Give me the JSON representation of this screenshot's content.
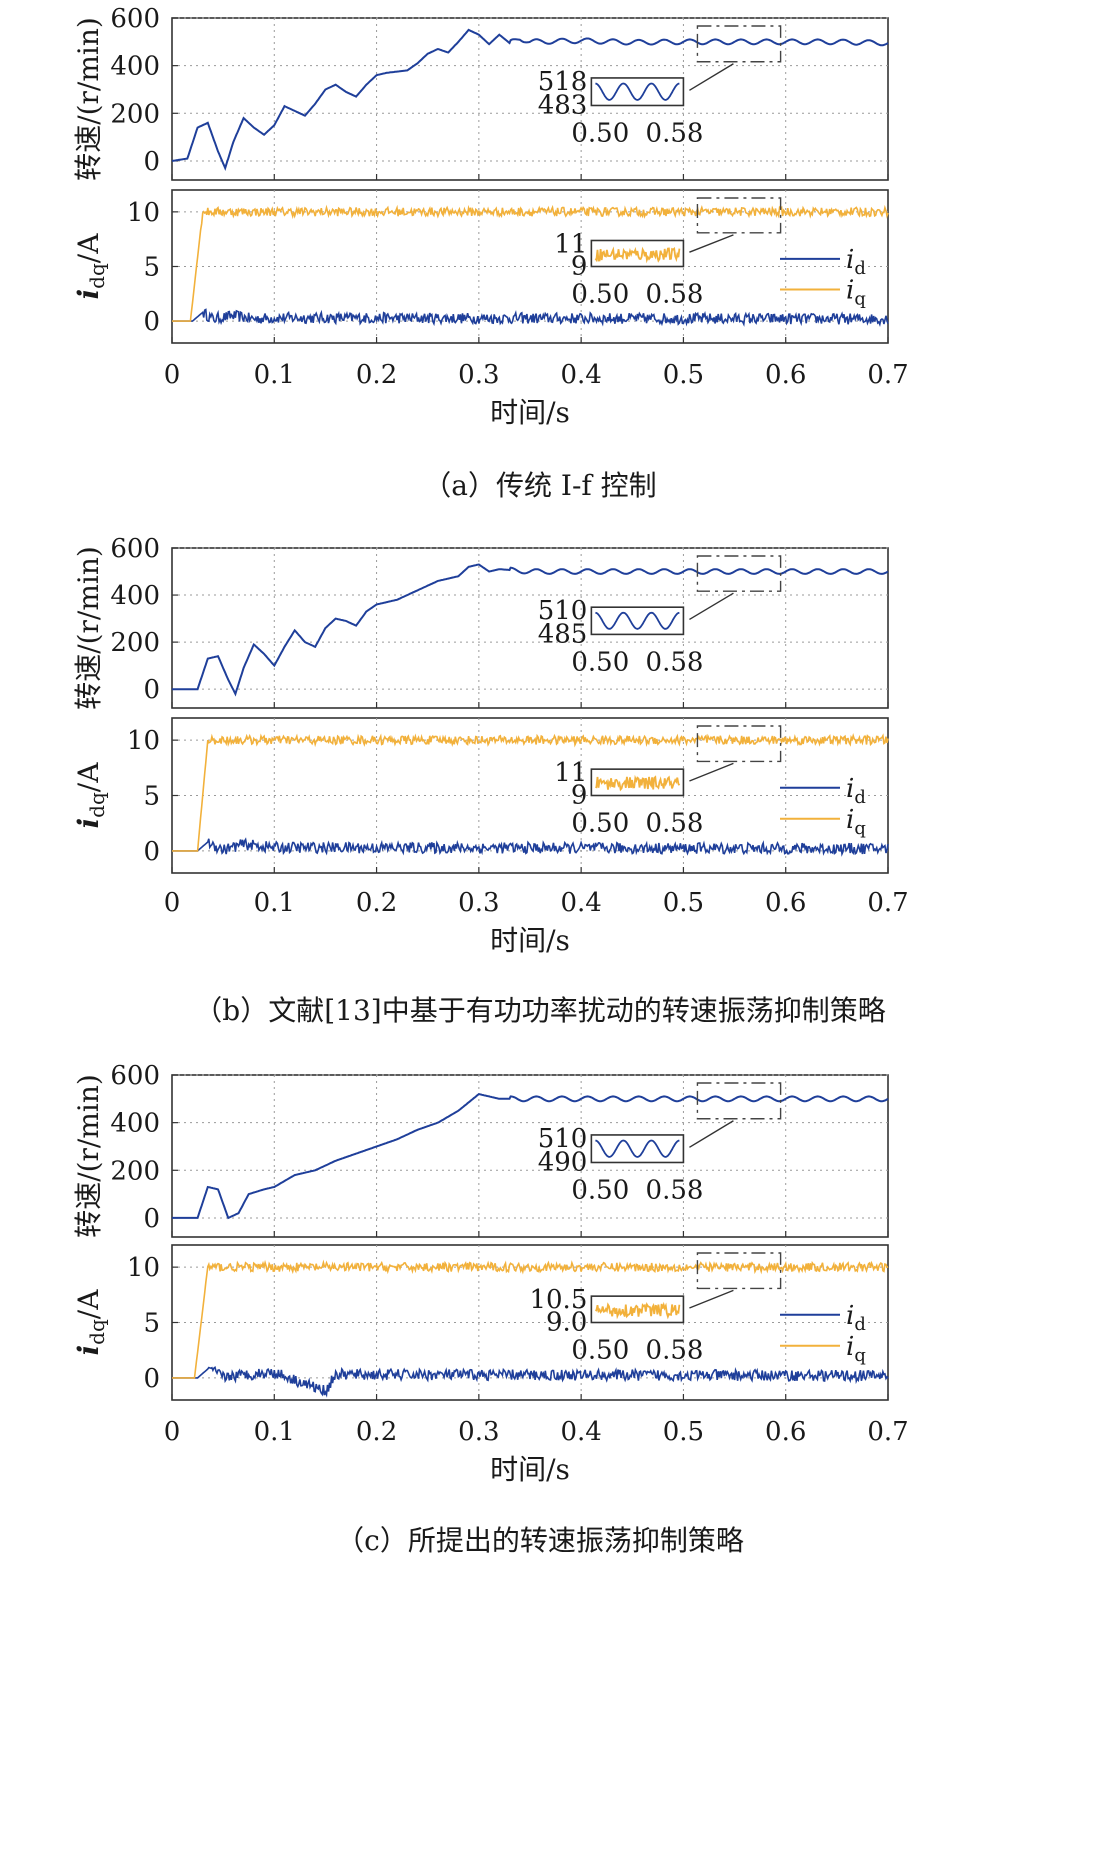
{
  "chart_data": [
    {
      "type": "line",
      "panel": "a",
      "caption": "（a）传统 I-f 控制",
      "xlabel": "时间/s",
      "xlim": [
        0,
        0.7
      ],
      "xticks": [
        "0",
        "0.1",
        "0.2",
        "0.3",
        "0.4",
        "0.5",
        "0.6",
        "0.7"
      ],
      "grid": true,
      "subplots": [
        {
          "ylabel": "转速/(r/min)",
          "ylim": [
            -80,
            600
          ],
          "yticks": [
            "0",
            "200",
            "400",
            "600"
          ],
          "series": [
            {
              "name": "",
              "color": "#1f3f9a",
              "x": [
                0,
                0.015,
                0.025,
                0.035,
                0.045,
                0.052,
                0.06,
                0.07,
                0.08,
                0.09,
                0.1,
                0.11,
                0.12,
                0.13,
                0.14,
                0.15,
                0.16,
                0.17,
                0.18,
                0.19,
                0.2,
                0.21,
                0.22,
                0.23,
                0.24,
                0.25,
                0.26,
                0.27,
                0.28,
                0.29,
                0.3,
                0.31,
                0.32,
                0.33,
                0.34,
                0.35,
                0.4,
                0.45,
                0.5,
                0.55,
                0.6,
                0.65,
                0.7
              ],
              "y": [
                0,
                10,
                140,
                160,
                40,
                -30,
                80,
                180,
                140,
                110,
                150,
                230,
                210,
                190,
                240,
                300,
                320,
                290,
                270,
                320,
                360,
                370,
                375,
                380,
                410,
                450,
                470,
                455,
                500,
                550,
                530,
                490,
                530,
                495,
                515,
                500,
                505,
                498,
                500,
                500,
                500,
                500,
                495
              ]
            }
          ],
          "inset": {
            "ymax_label": "518",
            "ymin_label": "483",
            "x_left_label": "0.50",
            "x_right_label": "0.58"
          }
        },
        {
          "ylabel": "i_dq/A",
          "ylim": [
            -2,
            12
          ],
          "yticks": [
            "0",
            "5",
            "10"
          ],
          "series": [
            {
              "name": "i_d",
              "color": "#1f3f9a",
              "noise": 0.5,
              "x": [
                0,
                0.02,
                0.03,
                0.04,
                0.06,
                0.08,
                0.1,
                0.7
              ],
              "y": [
                0,
                0,
                0.8,
                0.2,
                0.5,
                0.2,
                0.3,
                0.2
              ]
            },
            {
              "name": "i_q",
              "color": "#f2b13b",
              "noise": 0.4,
              "x": [
                0,
                0.018,
                0.03,
                0.05,
                0.7
              ],
              "y": [
                0,
                0,
                10,
                10,
                10
              ]
            }
          ],
          "inset": {
            "ymax_label": "11",
            "ymin_label": "9",
            "x_left_label": "0.50",
            "x_right_label": "0.58"
          }
        }
      ]
    },
    {
      "type": "line",
      "panel": "b",
      "caption": "（b）文献[13]中基于有功功率扰动的转速振荡抑制策略",
      "xlabel": "时间/s",
      "xlim": [
        0,
        0.7
      ],
      "xticks": [
        "0",
        "0.1",
        "0.2",
        "0.3",
        "0.4",
        "0.5",
        "0.6",
        "0.7"
      ],
      "grid": true,
      "subplots": [
        {
          "ylabel": "转速/(r/min)",
          "ylim": [
            -80,
            600
          ],
          "yticks": [
            "0",
            "200",
            "400",
            "600"
          ],
          "series": [
            {
              "name": "",
              "color": "#1f3f9a",
              "x": [
                0,
                0.025,
                0.035,
                0.045,
                0.055,
                0.062,
                0.07,
                0.08,
                0.09,
                0.1,
                0.11,
                0.12,
                0.13,
                0.14,
                0.15,
                0.16,
                0.17,
                0.18,
                0.19,
                0.2,
                0.22,
                0.24,
                0.26,
                0.28,
                0.29,
                0.3,
                0.31,
                0.32,
                0.35,
                0.4,
                0.5,
                0.6,
                0.7
              ],
              "y": [
                0,
                0,
                130,
                140,
                40,
                -20,
                90,
                190,
                150,
                100,
                180,
                250,
                200,
                180,
                260,
                300,
                290,
                270,
                330,
                360,
                380,
                420,
                460,
                480,
                520,
                530,
                500,
                510,
                500,
                500,
                500,
                500,
                500
              ]
            }
          ],
          "inset": {
            "ymax_label": "510",
            "ymin_label": "485",
            "x_left_label": "0.50",
            "x_right_label": "0.58"
          }
        },
        {
          "ylabel": "i_dq/A",
          "ylim": [
            -2,
            12
          ],
          "yticks": [
            "0",
            "5",
            "10"
          ],
          "series": [
            {
              "name": "i_d",
              "color": "#1f3f9a",
              "noise": 0.5,
              "x": [
                0,
                0.025,
                0.035,
                0.05,
                0.07,
                0.1,
                0.7
              ],
              "y": [
                0,
                0,
                0.8,
                0.1,
                0.6,
                0.3,
                0.2
              ]
            },
            {
              "name": "i_q",
              "color": "#f2b13b",
              "noise": 0.4,
              "x": [
                0,
                0.025,
                0.035,
                0.05,
                0.7
              ],
              "y": [
                0,
                0,
                10,
                10,
                10
              ]
            }
          ],
          "inset": {
            "ymax_label": "11",
            "ymin_label": "9",
            "x_left_label": "0.50",
            "x_right_label": "0.58"
          }
        }
      ]
    },
    {
      "type": "line",
      "panel": "c",
      "caption": "（c）所提出的转速振荡抑制策略",
      "xlabel": "时间/s",
      "xlim": [
        0,
        0.7
      ],
      "xticks": [
        "0",
        "0.1",
        "0.2",
        "0.3",
        "0.4",
        "0.5",
        "0.6",
        "0.7"
      ],
      "grid": true,
      "subplots": [
        {
          "ylabel": "转速/(r/min)",
          "ylim": [
            -80,
            600
          ],
          "yticks": [
            "0",
            "200",
            "400",
            "600"
          ],
          "series": [
            {
              "name": "",
              "color": "#1f3f9a",
              "x": [
                0,
                0.025,
                0.035,
                0.045,
                0.055,
                0.065,
                0.075,
                0.09,
                0.1,
                0.12,
                0.14,
                0.16,
                0.18,
                0.2,
                0.22,
                0.24,
                0.26,
                0.28,
                0.3,
                0.32,
                0.35,
                0.4,
                0.5,
                0.6,
                0.7
              ],
              "y": [
                0,
                0,
                130,
                120,
                0,
                20,
                100,
                120,
                130,
                180,
                200,
                240,
                270,
                300,
                330,
                370,
                400,
                450,
                520,
                500,
                500,
                500,
                500,
                500,
                500
              ]
            }
          ],
          "inset": {
            "ymax_label": "510",
            "ymin_label": "490",
            "x_left_label": "0.50",
            "x_right_label": "0.58"
          }
        },
        {
          "ylabel": "i_dq/A",
          "ylim": [
            -2,
            12
          ],
          "yticks": [
            "0",
            "5",
            "10"
          ],
          "series": [
            {
              "name": "i_d",
              "color": "#1f3f9a",
              "noise": 0.5,
              "x": [
                0,
                0.025,
                0.035,
                0.05,
                0.1,
                0.15,
                0.16,
                0.7
              ],
              "y": [
                0,
                0,
                0.8,
                0.1,
                0.5,
                -1.2,
                0.3,
                0.2
              ]
            },
            {
              "name": "i_q",
              "color": "#f2b13b",
              "noise": 0.4,
              "x": [
                0,
                0.022,
                0.035,
                0.05,
                0.7
              ],
              "y": [
                0,
                0,
                10,
                10,
                10
              ]
            }
          ],
          "inset": {
            "ymax_label": "10.5",
            "ymin_label": "9.0",
            "x_left_label": "0.50",
            "x_right_label": "0.58"
          }
        }
      ]
    }
  ]
}
